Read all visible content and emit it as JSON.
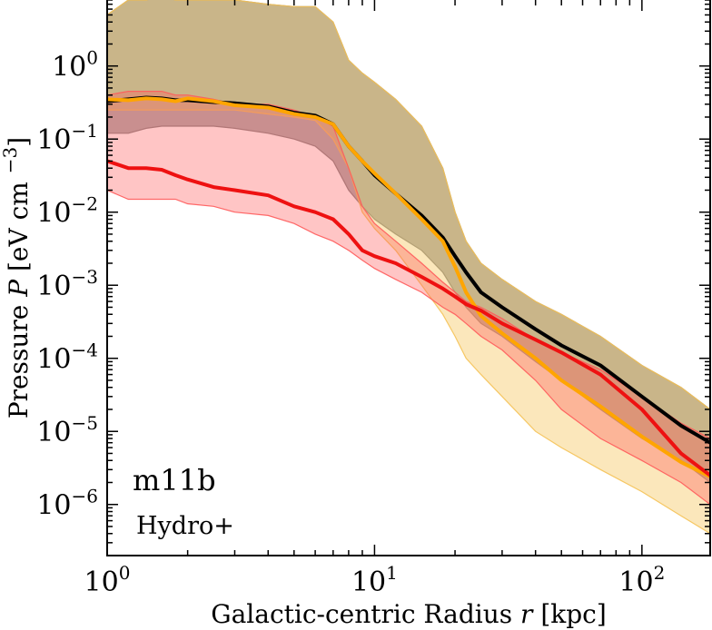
{
  "chart_data": {
    "type": "line",
    "xscale": "log",
    "yscale": "log",
    "xlim": [
      1,
      180
    ],
    "ylim": [
      2e-07,
      8
    ],
    "xlabel": "Galactic-centric Radius r [kpc]",
    "ylabel": "Pressure  P [eV cm^-3]",
    "annotations": {
      "sim": "m11b",
      "physics": "Hydro+"
    },
    "x_ticks": [
      {
        "value": 1,
        "base": "10",
        "exp": "0"
      },
      {
        "value": 10,
        "base": "10",
        "exp": "1"
      },
      {
        "value": 100,
        "base": "10",
        "exp": "2"
      }
    ],
    "y_ticks": [
      {
        "value": 1,
        "base": "10",
        "exp": "0"
      },
      {
        "value": 0.1,
        "base": "10",
        "exp": "−1"
      },
      {
        "value": 0.01,
        "base": "10",
        "exp": "−2"
      },
      {
        "value": 0.001,
        "base": "10",
        "exp": "−3"
      },
      {
        "value": 0.0001,
        "base": "10",
        "exp": "−4"
      },
      {
        "value": 1e-05,
        "base": "10",
        "exp": "−5"
      },
      {
        "value": 1e-06,
        "base": "10",
        "exp": "−6"
      }
    ],
    "bands": [
      {
        "name": "black-range",
        "color": "#808080",
        "opacity": 0.65,
        "x": [
          1,
          1.2,
          1.4,
          1.6,
          1.8,
          2.0,
          2.5,
          3,
          4,
          5,
          6,
          7,
          8,
          9,
          10,
          12,
          15,
          18,
          20,
          22,
          25,
          30,
          40,
          50,
          70,
          100,
          140,
          180
        ],
        "upper": [
          5,
          8,
          8,
          9,
          8,
          8,
          8,
          8,
          7,
          6.5,
          6.5,
          4,
          1.2,
          0.8,
          0.6,
          0.35,
          0.15,
          0.04,
          0.01,
          0.004,
          0.002,
          0.0012,
          0.0006,
          0.0004,
          0.0002,
          8e-05,
          4e-05,
          2e-05
        ],
        "lower": [
          0.12,
          0.12,
          0.14,
          0.15,
          0.15,
          0.15,
          0.15,
          0.14,
          0.12,
          0.1,
          0.08,
          0.05,
          0.02,
          0.012,
          0.008,
          0.005,
          0.003,
          0.0015,
          0.0008,
          0.0005,
          0.0003,
          0.0002,
          9e-05,
          5e-05,
          2e-05,
          8e-06,
          4e-06,
          2e-06
        ]
      },
      {
        "name": "orange-range",
        "color": "#f5c255",
        "opacity": 0.4,
        "x": [
          1,
          1.2,
          1.4,
          1.6,
          1.8,
          2.0,
          2.5,
          3,
          4,
          5,
          6,
          7,
          8,
          9,
          10,
          12,
          15,
          18,
          20,
          22,
          25,
          30,
          40,
          50,
          70,
          100,
          140,
          180
        ],
        "upper": [
          5,
          8,
          8,
          9,
          8,
          8,
          8,
          8,
          7,
          6.5,
          6.5,
          4,
          1.2,
          0.8,
          0.6,
          0.35,
          0.15,
          0.04,
          0.01,
          0.004,
          0.002,
          0.0012,
          0.0006,
          0.0004,
          0.0002,
          8e-05,
          4e-05,
          2e-05
        ],
        "lower": [
          0.25,
          0.25,
          0.25,
          0.25,
          0.25,
          0.25,
          0.25,
          0.25,
          0.22,
          0.2,
          0.18,
          0.1,
          0.04,
          0.01,
          0.006,
          0.003,
          0.001,
          0.0004,
          0.0002,
          0.0001,
          6e-05,
          3e-05,
          1e-05,
          6e-06,
          3e-06,
          1.5e-06,
          7e-07,
          4e-07
        ]
      },
      {
        "name": "red-range",
        "color": "#ff5a5a",
        "opacity": 0.35,
        "x": [
          1,
          1.2,
          1.4,
          1.6,
          1.8,
          2.0,
          2.5,
          3,
          4,
          5,
          6,
          7,
          8,
          9,
          10,
          12,
          15,
          18,
          20,
          22,
          25,
          30,
          40,
          50,
          70,
          100,
          140,
          180
        ],
        "upper": [
          0.4,
          0.45,
          0.45,
          0.45,
          0.4,
          0.4,
          0.35,
          0.3,
          0.3,
          0.25,
          0.2,
          0.15,
          0.04,
          0.012,
          0.007,
          0.004,
          0.002,
          0.0011,
          0.0008,
          0.0006,
          0.0005,
          0.00035,
          0.00018,
          0.00012,
          7e-05,
          3e-05,
          1.3e-05,
          8e-06
        ],
        "lower": [
          0.02,
          0.015,
          0.015,
          0.015,
          0.015,
          0.013,
          0.012,
          0.01,
          0.009,
          0.007,
          0.005,
          0.004,
          0.003,
          0.0022,
          0.0017,
          0.0012,
          0.0008,
          0.0005,
          0.0004,
          0.0003,
          0.0002,
          0.00013,
          5e-05,
          2e-05,
          8e-06,
          4e-06,
          2e-06,
          1e-06
        ]
      }
    ],
    "series": [
      {
        "name": "black",
        "color": "#000000",
        "x": [
          1,
          1.2,
          1.4,
          1.6,
          1.8,
          2.0,
          2.5,
          3,
          4,
          5,
          6,
          7,
          8,
          9,
          10,
          12,
          15,
          18,
          20,
          22,
          25,
          30,
          40,
          50,
          70,
          100,
          140,
          180
        ],
        "values": [
          0.33,
          0.35,
          0.37,
          0.36,
          0.34,
          0.34,
          0.32,
          0.31,
          0.28,
          0.23,
          0.21,
          0.16,
          0.08,
          0.05,
          0.032,
          0.018,
          0.009,
          0.0045,
          0.0025,
          0.0015,
          0.0008,
          0.0005,
          0.00025,
          0.00015,
          8e-05,
          3e-05,
          1.2e-05,
          7e-06
        ]
      },
      {
        "name": "orange",
        "color": "#ffa500",
        "x": [
          1,
          1.2,
          1.4,
          1.6,
          1.8,
          2.0,
          2.5,
          3,
          4,
          5,
          6,
          7,
          8,
          9,
          10,
          12,
          15,
          18,
          20,
          22,
          25,
          30,
          40,
          50,
          70,
          100,
          140,
          180
        ],
        "values": [
          0.35,
          0.34,
          0.36,
          0.35,
          0.33,
          0.36,
          0.33,
          0.29,
          0.27,
          0.22,
          0.2,
          0.16,
          0.08,
          0.05,
          0.034,
          0.018,
          0.008,
          0.004,
          0.0018,
          0.0008,
          0.00038,
          0.00022,
          0.0001,
          5e-05,
          2.2e-05,
          8.5e-06,
          3.8e-06,
          2.4e-06
        ]
      },
      {
        "name": "red",
        "color": "#ee1111",
        "x": [
          1,
          1.2,
          1.4,
          1.6,
          1.8,
          2.0,
          2.5,
          3,
          4,
          5,
          6,
          7,
          8,
          9,
          10,
          12,
          15,
          18,
          20,
          22,
          25,
          30,
          40,
          50,
          70,
          100,
          140,
          180
        ],
        "values": [
          0.05,
          0.04,
          0.04,
          0.038,
          0.032,
          0.028,
          0.022,
          0.02,
          0.017,
          0.012,
          0.01,
          0.008,
          0.005,
          0.003,
          0.0025,
          0.002,
          0.0013,
          0.0009,
          0.0007,
          0.00055,
          0.00045,
          0.0003,
          0.00018,
          0.00012,
          6e-05,
          2e-05,
          5e-06,
          2.5e-06
        ]
      }
    ]
  }
}
